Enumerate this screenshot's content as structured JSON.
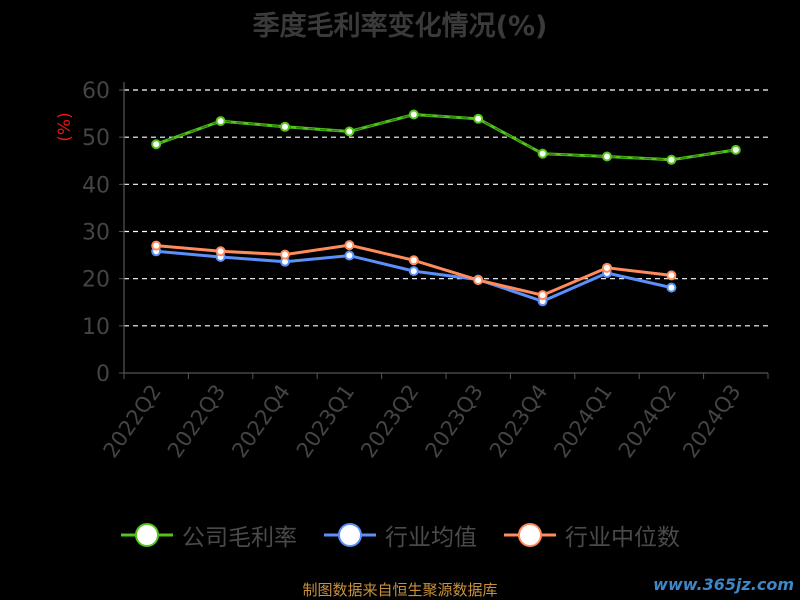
{
  "chart_data": {
    "type": "line",
    "title": "季度毛利率变化情况(%)",
    "ylabel": "(%)",
    "xlabel": "",
    "ylim": [
      0,
      60
    ],
    "yticks": [
      0,
      10,
      20,
      30,
      40,
      50,
      60
    ],
    "grid": "horizontal dashed",
    "legend_position": "bottom",
    "categories": [
      "2022Q2",
      "2022Q3",
      "2022Q4",
      "2023Q1",
      "2023Q2",
      "2023Q3",
      "2023Q4",
      "2024Q1",
      "2024Q2",
      "2024Q3"
    ],
    "series": [
      {
        "name": "公司毛利率",
        "color": "#52c41a",
        "values": [
          48.5,
          53.4,
          52.2,
          51.2,
          54.8,
          53.9,
          46.5,
          45.9,
          45.2,
          47.3
        ]
      },
      {
        "name": "行业均值",
        "color": "#5b8ff9",
        "values": [
          25.8,
          24.6,
          23.6,
          24.9,
          21.6,
          19.8,
          15.2,
          21.2,
          18.1,
          null
        ]
      },
      {
        "name": "行业中位数",
        "color": "#ff8c5a",
        "values": [
          27.0,
          25.8,
          25.1,
          27.1,
          23.9,
          19.7,
          16.5,
          22.3,
          20.7,
          null
        ]
      }
    ]
  },
  "footer": "制图数据来自恒生聚源数据库",
  "watermark": "www.365jz.com"
}
